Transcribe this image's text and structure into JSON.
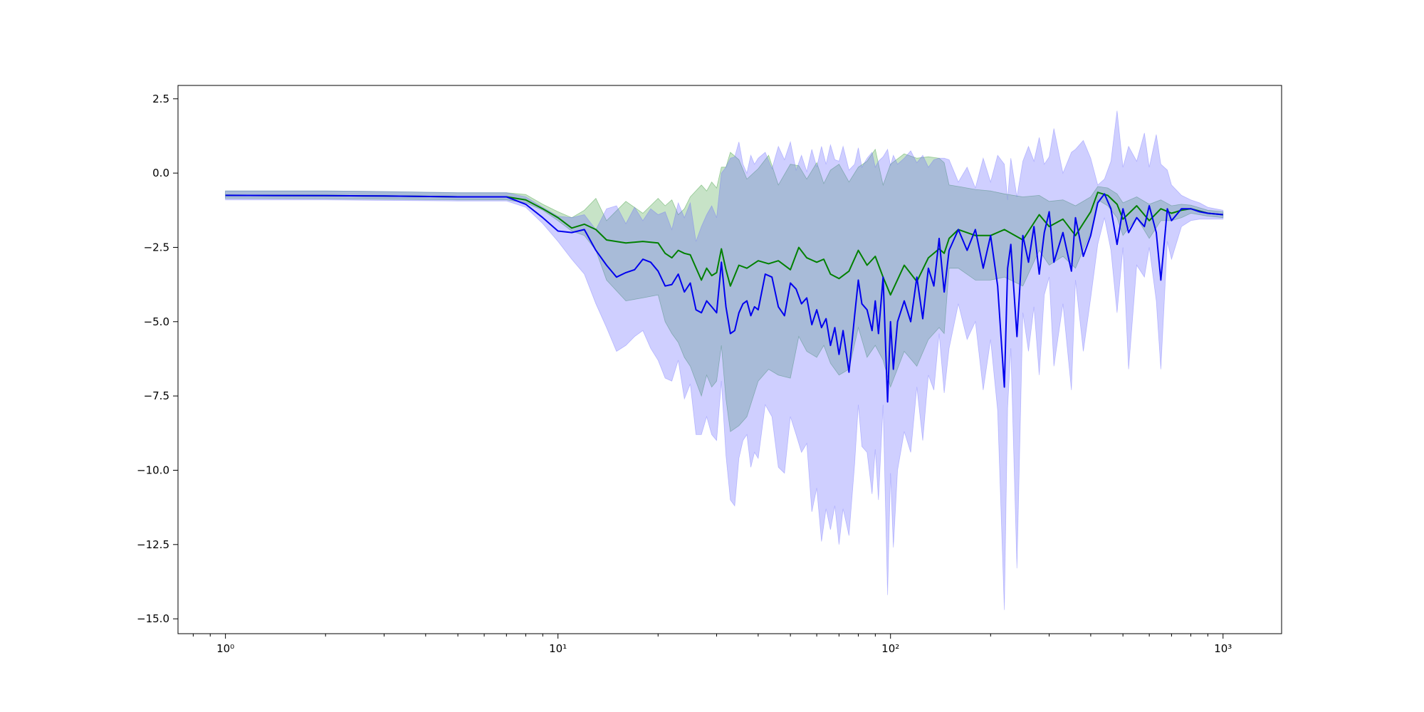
{
  "chart_data": {
    "type": "line",
    "title": "",
    "xlabel": "",
    "ylabel": "",
    "x_scale": "log",
    "xlim": [
      0.72,
      1500
    ],
    "ylim": [
      -15.5,
      2.95
    ],
    "grid": false,
    "legend": "none",
    "x_ticks": [
      {
        "value": 1,
        "label": "10⁰"
      },
      {
        "value": 10,
        "label": "10¹"
      },
      {
        "value": 100,
        "label": "10²"
      },
      {
        "value": 1000,
        "label": "10³"
      }
    ],
    "y_ticks": [
      {
        "value": 2.5,
        "label": "2.5"
      },
      {
        "value": 0,
        "label": "0.0"
      },
      {
        "value": -2.5,
        "label": "−2.5"
      },
      {
        "value": -5,
        "label": "−5.0"
      },
      {
        "value": -7.5,
        "label": "−7.5"
      },
      {
        "value": -10,
        "label": "−10.0"
      },
      {
        "value": -12.5,
        "label": "−12.5"
      },
      {
        "value": -15,
        "label": "−15.0"
      }
    ],
    "series": [
      {
        "color": "#008000",
        "band_color": "#008000",
        "band_opacity": 0.22,
        "x": [
          1,
          2,
          3,
          5,
          7,
          8,
          9,
          10,
          11,
          12,
          13,
          14,
          16,
          18,
          20,
          21,
          22,
          23,
          24,
          25,
          27,
          28,
          29,
          30,
          31,
          32,
          33,
          35,
          37,
          40,
          43,
          46,
          50,
          53,
          56,
          60,
          63,
          66,
          70,
          75,
          80,
          85,
          90,
          95,
          100,
          110,
          120,
          130,
          140,
          145,
          150,
          160,
          180,
          200,
          220,
          250,
          280,
          300,
          330,
          360,
          400,
          420,
          450,
          480,
          500,
          550,
          600,
          650,
          700,
          750,
          800,
          900,
          1000
        ],
        "y": [
          -0.75,
          -0.76,
          -0.77,
          -0.8,
          -0.8,
          -0.9,
          -1.2,
          -1.5,
          -1.85,
          -1.72,
          -1.9,
          -2.25,
          -2.35,
          -2.3,
          -2.35,
          -2.7,
          -2.85,
          -2.6,
          -2.7,
          -2.75,
          -3.6,
          -3.2,
          -3.45,
          -3.35,
          -2.55,
          -3.25,
          -3.8,
          -3.1,
          -3.2,
          -2.95,
          -3.05,
          -2.95,
          -3.25,
          -2.5,
          -2.85,
          -3.0,
          -2.9,
          -3.4,
          -3.55,
          -3.3,
          -2.6,
          -3.1,
          -2.8,
          -3.5,
          -4.1,
          -3.1,
          -3.65,
          -2.85,
          -2.55,
          -2.7,
          -2.2,
          -1.9,
          -2.1,
          -2.1,
          -1.9,
          -2.25,
          -1.4,
          -1.8,
          -1.55,
          -2.1,
          -1.3,
          -0.65,
          -0.75,
          -1.05,
          -1.55,
          -1.1,
          -1.6,
          -1.2,
          -1.35,
          -1.25,
          -1.2,
          -1.35,
          -1.4
        ],
        "lower": [
          -0.85,
          -0.86,
          -0.88,
          -0.9,
          -0.9,
          -1.0,
          -1.25,
          -1.6,
          -1.95,
          -2.1,
          -2.6,
          -3.6,
          -4.3,
          -4.2,
          -4.1,
          -5.0,
          -5.4,
          -5.7,
          -6.2,
          -6.5,
          -7.5,
          -6.8,
          -7.2,
          -7.0,
          -5.8,
          -7.6,
          -8.7,
          -8.5,
          -8.2,
          -7.0,
          -6.6,
          -6.8,
          -6.9,
          -5.5,
          -6.0,
          -6.2,
          -5.8,
          -6.4,
          -6.8,
          -6.6,
          -5.2,
          -6.2,
          -5.8,
          -6.3,
          -7.2,
          -6.0,
          -6.5,
          -5.6,
          -5.2,
          -5.4,
          -3.2,
          -3.2,
          -3.6,
          -3.6,
          -3.5,
          -3.8,
          -2.6,
          -3.1,
          -2.8,
          -3.2,
          -2.0,
          -0.9,
          -1.1,
          -1.5,
          -2.1,
          -1.5,
          -2.2,
          -1.6,
          -1.6,
          -1.5,
          -1.35,
          -1.45,
          -1.5
        ],
        "upper": [
          -0.6,
          -0.6,
          -0.62,
          -0.66,
          -0.66,
          -0.72,
          -1.05,
          -1.3,
          -1.5,
          -1.25,
          -0.85,
          -1.6,
          -0.95,
          -1.35,
          -0.85,
          -1.1,
          -0.9,
          -1.4,
          -1.2,
          -0.8,
          -0.4,
          -0.6,
          -0.3,
          -0.5,
          0.2,
          0.2,
          0.7,
          0.45,
          -0.2,
          0.15,
          0.6,
          -0.4,
          0.3,
          0.25,
          -0.2,
          0.35,
          -0.35,
          0.1,
          0.3,
          -0.3,
          0.2,
          0.4,
          0.8,
          -0.4,
          0.3,
          0.65,
          0.5,
          0.55,
          0.5,
          0.35,
          -0.4,
          -0.45,
          -0.55,
          -0.6,
          -0.7,
          -0.8,
          -0.75,
          -0.95,
          -0.9,
          -1.1,
          -0.8,
          -0.45,
          -0.5,
          -0.7,
          -1.0,
          -0.8,
          -1.05,
          -0.9,
          -1.1,
          -1.05,
          -1.08,
          -1.25,
          -1.3
        ]
      },
      {
        "color": "#0000ee",
        "band_color": "#6060ff",
        "band_opacity": 0.3,
        "x": [
          1,
          2,
          3,
          5,
          7,
          8,
          9,
          10,
          11,
          12,
          13,
          14,
          15,
          16,
          17,
          18,
          19,
          20,
          21,
          22,
          23,
          24,
          25,
          26,
          27,
          28,
          29,
          30,
          31,
          32,
          33,
          34,
          35,
          36,
          37,
          38,
          39,
          40,
          42,
          44,
          46,
          48,
          50,
          52,
          54,
          56,
          58,
          60,
          62,
          64,
          66,
          68,
          70,
          72,
          75,
          78,
          80,
          82,
          85,
          88,
          90,
          92,
          95,
          98,
          100,
          102,
          105,
          110,
          115,
          120,
          125,
          130,
          135,
          140,
          145,
          150,
          160,
          170,
          180,
          190,
          200,
          210,
          220,
          225,
          230,
          240,
          250,
          260,
          270,
          280,
          290,
          300,
          310,
          330,
          350,
          360,
          380,
          400,
          420,
          440,
          460,
          480,
          500,
          520,
          550,
          580,
          600,
          630,
          650,
          680,
          700,
          750,
          800,
          850,
          900,
          1000
        ],
        "y": [
          -0.75,
          -0.76,
          -0.77,
          -0.8,
          -0.8,
          -1.05,
          -1.5,
          -1.95,
          -2.0,
          -1.9,
          -2.6,
          -3.1,
          -3.5,
          -3.35,
          -3.25,
          -2.9,
          -3.0,
          -3.3,
          -3.8,
          -3.75,
          -3.4,
          -4.0,
          -3.7,
          -4.6,
          -4.7,
          -4.3,
          -4.5,
          -4.7,
          -3.0,
          -4.5,
          -5.4,
          -5.3,
          -4.7,
          -4.4,
          -4.3,
          -4.8,
          -4.5,
          -4.6,
          -3.4,
          -3.5,
          -4.5,
          -4.8,
          -3.7,
          -3.9,
          -4.4,
          -4.2,
          -5.1,
          -4.6,
          -5.2,
          -4.9,
          -5.8,
          -5.2,
          -6.1,
          -5.3,
          -6.7,
          -4.8,
          -3.6,
          -4.4,
          -4.6,
          -5.3,
          -4.3,
          -5.4,
          -3.5,
          -7.7,
          -5.0,
          -6.6,
          -5.0,
          -4.3,
          -5.0,
          -3.5,
          -4.9,
          -3.2,
          -3.8,
          -2.2,
          -4.0,
          -2.6,
          -1.9,
          -2.6,
          -1.9,
          -3.2,
          -2.1,
          -3.8,
          -7.2,
          -3.2,
          -2.4,
          -5.5,
          -2.1,
          -3.0,
          -1.8,
          -3.4,
          -2.0,
          -1.3,
          -3.0,
          -2.0,
          -3.3,
          -1.5,
          -2.8,
          -2.1,
          -1.0,
          -0.7,
          -1.2,
          -2.4,
          -1.2,
          -2.0,
          -1.5,
          -1.8,
          -1.1,
          -2.0,
          -3.6,
          -1.2,
          -1.6,
          -1.2,
          -1.2,
          -1.3,
          -1.35,
          -1.4
        ],
        "lower": [
          -0.9,
          -0.9,
          -0.92,
          -0.94,
          -0.94,
          -1.15,
          -1.7,
          -2.3,
          -2.9,
          -3.4,
          -4.4,
          -5.2,
          -6.0,
          -5.8,
          -5.5,
          -5.3,
          -5.9,
          -6.3,
          -6.9,
          -7.0,
          -6.3,
          -7.6,
          -7.1,
          -8.8,
          -8.8,
          -8.2,
          -8.8,
          -9.0,
          -7.0,
          -9.5,
          -11.0,
          -11.2,
          -9.6,
          -9.0,
          -8.8,
          -9.9,
          -9.4,
          -9.6,
          -7.8,
          -8.2,
          -9.9,
          -10.1,
          -8.2,
          -8.8,
          -9.4,
          -9.1,
          -11.4,
          -10.6,
          -12.4,
          -11.3,
          -12.0,
          -11.2,
          -12.5,
          -11.3,
          -12.2,
          -9.8,
          -7.8,
          -9.2,
          -9.4,
          -10.8,
          -9.3,
          -11.0,
          -7.8,
          -14.2,
          -10.1,
          -12.6,
          -10.0,
          -8.7,
          -9.4,
          -7.2,
          -9.0,
          -6.8,
          -7.3,
          -5.4,
          -7.4,
          -5.9,
          -4.4,
          -5.6,
          -5.0,
          -7.3,
          -5.6,
          -8.0,
          -14.7,
          -7.9,
          -5.9,
          -13.3,
          -4.7,
          -6.0,
          -4.5,
          -6.8,
          -4.1,
          -3.5,
          -6.5,
          -4.4,
          -7.3,
          -3.6,
          -6.0,
          -4.2,
          -2.4,
          -1.5,
          -2.6,
          -4.7,
          -2.5,
          -6.6,
          -3.1,
          -3.5,
          -2.5,
          -4.3,
          -6.6,
          -2.3,
          -2.9,
          -1.8,
          -1.6,
          -1.55,
          -1.55,
          -1.55
        ],
        "upper": [
          -0.6,
          -0.6,
          -0.62,
          -0.66,
          -0.66,
          -0.8,
          -1.15,
          -1.45,
          -1.5,
          -1.4,
          -1.9,
          -1.2,
          -1.1,
          -1.7,
          -1.15,
          -1.6,
          -1.2,
          -1.4,
          -1.3,
          -1.9,
          -1.0,
          -1.5,
          -1.0,
          -2.3,
          -1.8,
          -1.4,
          -1.1,
          -1.5,
          0.0,
          0.2,
          0.5,
          0.55,
          1.05,
          0.3,
          0.0,
          0.6,
          0.3,
          0.5,
          0.7,
          0.15,
          0.9,
          0.45,
          1.05,
          0.1,
          0.6,
          0.05,
          0.8,
          0.2,
          0.9,
          0.3,
          0.95,
          0.45,
          0.4,
          0.9,
          0.1,
          0.3,
          0.85,
          0.2,
          0.5,
          0.7,
          0.2,
          0.4,
          0.55,
          0.8,
          0.25,
          0.6,
          0.3,
          0.5,
          0.75,
          0.35,
          0.6,
          0.2,
          0.45,
          0.5,
          0.5,
          0.45,
          -0.3,
          0.2,
          -0.5,
          0.5,
          -0.3,
          0.6,
          0.3,
          -0.9,
          0.5,
          -0.8,
          0.4,
          0.9,
          0.4,
          1.2,
          0.3,
          0.55,
          1.5,
          0.0,
          0.7,
          0.8,
          1.1,
          0.5,
          -0.4,
          -0.2,
          0.4,
          2.1,
          0.2,
          0.9,
          0.4,
          1.35,
          0.2,
          1.3,
          0.3,
          0.1,
          -0.4,
          -0.75,
          -0.9,
          -1.0,
          -1.15,
          -1.25
        ]
      }
    ]
  }
}
